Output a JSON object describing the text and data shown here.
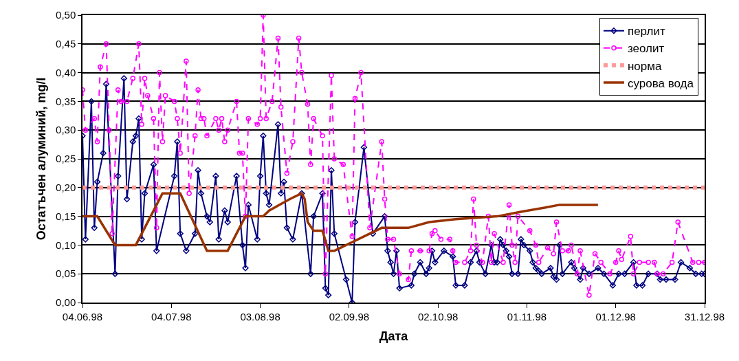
{
  "chart_data": {
    "type": "line",
    "xlabel": "Дата",
    "ylabel": "Остатъчен алуминий, mg/l",
    "xlim": [
      "1998-06-04",
      "1998-12-31"
    ],
    "xticks": [
      {
        "value": "1998-06-04",
        "label": "04.06.98"
      },
      {
        "value": "1998-07-04",
        "label": "04.07.98"
      },
      {
        "value": "1998-08-03",
        "label": "03.08.98"
      },
      {
        "value": "1998-09-02",
        "label": "02.09.98"
      },
      {
        "value": "1998-10-02",
        "label": "02.10.98"
      },
      {
        "value": "1998-11-01",
        "label": "01.11.98"
      },
      {
        "value": "1998-12-01",
        "label": "01.12.98"
      },
      {
        "value": "1998-12-31",
        "label": "31.12.98"
      }
    ],
    "ylim": [
      0,
      0.5
    ],
    "yticks": [
      {
        "value": 0,
        "label": "0,00"
      },
      {
        "value": 0.05,
        "label": "0,05"
      },
      {
        "value": 0.1,
        "label": "0,10"
      },
      {
        "value": 0.15,
        "label": "0,15"
      },
      {
        "value": 0.2,
        "label": "0,20"
      },
      {
        "value": 0.25,
        "label": "0,25"
      },
      {
        "value": 0.3,
        "label": "0,30"
      },
      {
        "value": 0.35,
        "label": "0,35"
      },
      {
        "value": 0.4,
        "label": "0,40"
      },
      {
        "value": 0.45,
        "label": "0,45"
      },
      {
        "value": 0.5,
        "label": "0,50"
      }
    ],
    "grid": "y",
    "legend": "top right",
    "ref_lines": [
      {
        "axis": "y",
        "value": 0.2,
        "label": "норма",
        "color": "#ff9999",
        "line_style": "dotted"
      }
    ],
    "series": [
      {
        "name": "перлит",
        "color": "#000080",
        "marker": "diamond",
        "line_style": "solid",
        "x": [
          "1998-06-04",
          "1998-06-05",
          "1998-06-07",
          "1998-06-08",
          "1998-06-09",
          "1998-06-11",
          "1998-06-12",
          "1998-06-15",
          "1998-06-16",
          "1998-06-18",
          "1998-06-19",
          "1998-06-21",
          "1998-06-22",
          "1998-06-23",
          "1998-06-24",
          "1998-06-25",
          "1998-06-28",
          "1998-06-29",
          "1998-07-05",
          "1998-07-06",
          "1998-07-07",
          "1998-07-09",
          "1998-07-12",
          "1998-07-13",
          "1998-07-14",
          "1998-07-16",
          "1998-07-17",
          "1998-07-19",
          "1998-07-20",
          "1998-07-22",
          "1998-07-23",
          "1998-07-26",
          "1998-07-28",
          "1998-07-29",
          "1998-07-30",
          "1998-08-02",
          "1998-08-03",
          "1998-08-04",
          "1998-08-05",
          "1998-08-06",
          "1998-08-09",
          "1998-08-10",
          "1998-08-11",
          "1998-08-12",
          "1998-08-14",
          "1998-08-17",
          "1998-08-20",
          "1998-08-21",
          "1998-08-24",
          "1998-08-25",
          "1998-08-26",
          "1998-08-27",
          "1998-08-28",
          "1998-09-01",
          "1998-09-03",
          "1998-09-04",
          "1998-09-07",
          "1998-09-10",
          "1998-09-14",
          "1998-09-15",
          "1998-09-16",
          "1998-09-17",
          "1998-09-18",
          "1998-09-19",
          "1998-09-23",
          "1998-09-24",
          "1998-09-26",
          "1998-09-28",
          "1998-09-29",
          "1998-09-30",
          "1998-10-01",
          "1998-10-04",
          "1998-10-07",
          "1998-10-08",
          "1998-10-11",
          "1998-10-13",
          "1998-10-15",
          "1998-10-16",
          "1998-10-18",
          "1998-10-20",
          "1998-10-21",
          "1998-10-22",
          "1998-10-23",
          "1998-10-24",
          "1998-10-25",
          "1998-10-26",
          "1998-10-27",
          "1998-10-29",
          "1998-10-30",
          "1998-10-31",
          "1998-11-02",
          "1998-11-03",
          "1998-11-04",
          "1998-11-05",
          "1998-11-06",
          "1998-11-09",
          "1998-11-10",
          "1998-11-11",
          "1998-11-12",
          "1998-11-13",
          "1998-11-16",
          "1998-11-17",
          "1998-11-19",
          "1998-11-20",
          "1998-11-22",
          "1998-11-25",
          "1998-11-27",
          "1998-11-30",
          "1998-12-02",
          "1998-12-04",
          "1998-12-07",
          "1998-12-08",
          "1998-12-10",
          "1998-12-12",
          "1998-12-15",
          "1998-12-16",
          "1998-12-18",
          "1998-12-21",
          "1998-12-23",
          "1998-12-26",
          "1998-12-28",
          "1998-12-30",
          "1998-12-31"
        ],
        "values": [
          0.29,
          0.11,
          0.35,
          0.13,
          0.21,
          0.26,
          0.38,
          0.05,
          0.22,
          0.39,
          0.18,
          0.28,
          0.29,
          0.32,
          0.11,
          0.19,
          0.24,
          0.09,
          0.22,
          0.28,
          0.12,
          0.09,
          0.12,
          0.23,
          0.19,
          0.15,
          0.14,
          0.22,
          0.11,
          0.16,
          0.14,
          0.22,
          0.1,
          0.06,
          0.17,
          0.11,
          0.22,
          0.29,
          0.19,
          0.17,
          0.31,
          0.19,
          0.21,
          0.13,
          0.11,
          0.19,
          0.05,
          0.15,
          0.19,
          0.025,
          0.013,
          0.23,
          0.12,
          0.04,
          0.0,
          0.14,
          0.27,
          0.12,
          0.15,
          0.09,
          0.07,
          0.05,
          0.09,
          0.025,
          0.03,
          0.05,
          0.07,
          0.05,
          0.06,
          0.09,
          0.07,
          0.09,
          0.08,
          0.03,
          0.03,
          0.07,
          0.09,
          0.07,
          0.05,
          0.1,
          0.07,
          0.07,
          0.11,
          0.1,
          0.09,
          0.08,
          0.05,
          0.05,
          0.11,
          0.1,
          0.09,
          0.07,
          0.06,
          0.055,
          0.05,
          0.06,
          0.045,
          0.04,
          0.1,
          0.05,
          0.07,
          0.06,
          0.04,
          0.06,
          0.05,
          0.06,
          0.05,
          0.03,
          0.05,
          0.05,
          0.07,
          0.03,
          0.03,
          0.05,
          0.05,
          0.04,
          0.04,
          0.04,
          0.07,
          0.06,
          0.05,
          0.05,
          0.05
        ]
      },
      {
        "name": "зеолит",
        "color": "#ff00ff",
        "marker": "circle",
        "line_style": "dashed",
        "x": [
          "1998-06-04",
          "1998-06-05",
          "1998-06-08",
          "1998-06-09",
          "1998-06-10",
          "1998-06-12",
          "1998-06-13",
          "1998-06-14",
          "1998-06-16",
          "1998-06-17",
          "1998-06-19",
          "1998-06-21",
          "1998-06-23",
          "1998-06-24",
          "1998-06-25",
          "1998-06-26",
          "1998-06-28",
          "1998-06-29",
          "1998-06-30",
          "1998-07-01",
          "1998-07-02",
          "1998-07-05",
          "1998-07-06",
          "1998-07-07",
          "1998-07-09",
          "1998-07-10",
          "1998-07-12",
          "1998-07-13",
          "1998-07-14",
          "1998-07-15",
          "1998-07-16",
          "1998-07-19",
          "1998-07-20",
          "1998-07-21",
          "1998-07-22",
          "1998-07-23",
          "1998-07-26",
          "1998-07-27",
          "1998-07-28",
          "1998-07-29",
          "1998-07-30",
          "1998-08-02",
          "1998-08-03",
          "1998-08-04",
          "1998-08-05",
          "1998-08-07",
          "1998-08-09",
          "1998-08-10",
          "1998-08-12",
          "1998-08-14",
          "1998-08-16",
          "1998-08-17",
          "1998-08-19",
          "1998-08-20",
          "1998-08-21",
          "1998-08-24",
          "1998-08-25",
          "1998-08-27",
          "1998-08-28",
          "1998-08-31",
          "1998-09-03",
          "1998-09-04",
          "1998-09-06",
          "1998-09-09",
          "1998-09-13",
          "1998-09-14",
          "1998-09-15",
          "1998-09-17",
          "1998-09-19",
          "1998-09-22",
          "1998-09-23",
          "1998-09-26",
          "1998-09-29",
          "1998-09-30",
          "1998-10-01",
          "1998-10-03",
          "1998-10-06",
          "1998-10-07",
          "1998-10-08",
          "1998-10-11",
          "1998-10-13",
          "1998-10-14",
          "1998-10-15",
          "1998-10-17",
          "1998-10-19",
          "1998-10-20",
          "1998-10-21",
          "1998-10-24",
          "1998-10-26",
          "1998-10-27",
          "1998-10-28",
          "1998-10-29",
          "1998-11-02",
          "1998-11-04",
          "1998-11-05",
          "1998-11-08",
          "1998-11-10",
          "1998-11-11",
          "1998-11-13",
          "1998-11-15",
          "1998-11-16",
          "1998-11-18",
          "1998-11-19",
          "1998-11-22",
          "1998-11-24",
          "1998-11-26",
          "1998-11-29",
          "1998-12-01",
          "1998-12-02",
          "1998-12-03",
          "1998-12-06",
          "1998-12-07",
          "1998-12-09",
          "1998-12-12",
          "1998-12-14",
          "1998-12-15",
          "1998-12-17",
          "1998-12-20",
          "1998-12-22",
          "1998-12-27",
          "1998-12-29",
          "1998-12-31"
        ],
        "values": [
          0.37,
          0.3,
          0.32,
          0.28,
          0.41,
          0.45,
          0.3,
          0.12,
          0.37,
          0.35,
          0.35,
          0.39,
          0.45,
          0.31,
          0.39,
          0.36,
          0.32,
          0.13,
          0.4,
          0.28,
          0.36,
          0.35,
          0.32,
          0.26,
          0.42,
          0.19,
          0.29,
          0.37,
          0.32,
          0.32,
          0.29,
          0.32,
          0.3,
          0.32,
          0.28,
          0.3,
          0.35,
          0.26,
          0.26,
          0.15,
          0.32,
          0.31,
          0.32,
          0.5,
          0.32,
          0.35,
          0.46,
          0.34,
          0.225,
          0.28,
          0.46,
          0.4,
          0.345,
          0.24,
          0.32,
          0.29,
          0.05,
          0.395,
          0.25,
          0.24,
          0.115,
          0.355,
          0.4,
          0.13,
          0.28,
          0.18,
          0.11,
          0.11,
          0.05,
          0.04,
          0.09,
          0.09,
          0.09,
          0.12,
          0.125,
          0.11,
          0.11,
          0.09,
          0.07,
          0.07,
          0.09,
          0.18,
          0.1,
          0.07,
          0.15,
          0.07,
          0.12,
          0.07,
          0.17,
          0.1,
          0.07,
          0.15,
          0.125,
          0.1,
          0.07,
          0.095,
          0.085,
          0.14,
          0.09,
          0.09,
          0.1,
          0.05,
          0.09,
          0.013,
          0.085,
          0.07,
          0.05,
          0.07,
          0.09,
          0.075,
          0.115,
          0.05,
          0.07,
          0.07,
          0.07,
          0.05,
          0.05,
          0.07,
          0.14,
          0.07,
          0.07,
          0.07
        ]
      },
      {
        "name": "сурова вода",
        "color": "#993300",
        "marker": "none",
        "line_style": "solid",
        "x": [
          "1998-06-04",
          "1998-06-09",
          "1998-06-15",
          "1998-06-22",
          "1998-07-01",
          "1998-07-07",
          "1998-07-16",
          "1998-07-23",
          "1998-07-29",
          "1998-08-04",
          "1998-08-06",
          "1998-08-13",
          "1998-08-17",
          "1998-08-18",
          "1998-08-19",
          "1998-08-21",
          "1998-08-24",
          "1998-08-26",
          "1998-08-28",
          "1998-09-03",
          "1998-09-07",
          "1998-09-13",
          "1998-09-22",
          "1998-09-29",
          "1998-10-08",
          "1998-10-22",
          "1998-10-30",
          "1998-11-07",
          "1998-11-12",
          "1998-11-25"
        ],
        "values": [
          0.15,
          0.15,
          0.1,
          0.1,
          0.19,
          0.19,
          0.09,
          0.09,
          0.15,
          0.15,
          0.16,
          0.18,
          0.19,
          0.18,
          0.14,
          0.125,
          0.125,
          0.09,
          0.09,
          0.105,
          0.115,
          0.13,
          0.13,
          0.14,
          0.145,
          0.15,
          0.158,
          0.165,
          0.17,
          0.17
        ]
      }
    ]
  }
}
